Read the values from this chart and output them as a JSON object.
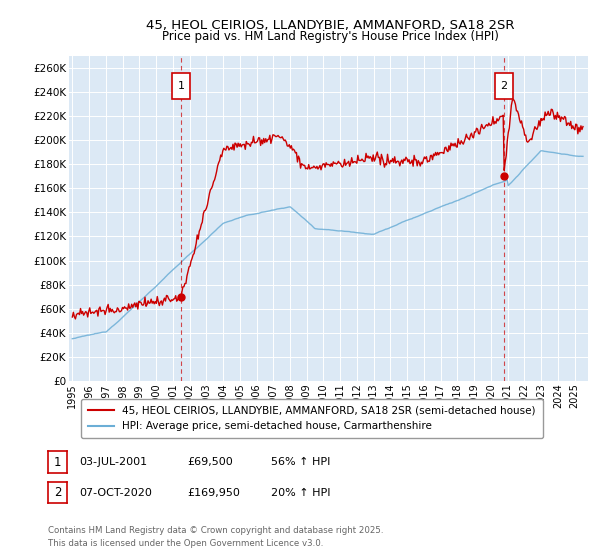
{
  "title": "45, HEOL CEIRIOS, LLANDYBIE, AMMANFORD, SA18 2SR",
  "subtitle": "Price paid vs. HM Land Registry's House Price Index (HPI)",
  "ylim": [
    0,
    270000
  ],
  "yticks": [
    0,
    20000,
    40000,
    60000,
    80000,
    100000,
    120000,
    140000,
    160000,
    180000,
    200000,
    220000,
    240000,
    260000
  ],
  "ytick_labels": [
    "£0",
    "£20K",
    "£40K",
    "£60K",
    "£80K",
    "£100K",
    "£120K",
    "£140K",
    "£160K",
    "£180K",
    "£200K",
    "£220K",
    "£240K",
    "£260K"
  ],
  "bg_color": "#dce9f5",
  "red_color": "#cc0000",
  "blue_color": "#6baed6",
  "marker1_date": 2001.5,
  "marker1_value": 69500,
  "marker2_date": 2020.77,
  "marker2_value": 169950,
  "legend_line1": "45, HEOL CEIRIOS, LLANDYBIE, AMMANFORD, SA18 2SR (semi-detached house)",
  "legend_line2": "HPI: Average price, semi-detached house, Carmarthenshire",
  "note1_label": "1",
  "note1_date": "03-JUL-2001",
  "note1_price": "£69,500",
  "note1_hpi": "56% ↑ HPI",
  "note2_label": "2",
  "note2_date": "07-OCT-2020",
  "note2_price": "£169,950",
  "note2_hpi": "20% ↑ HPI",
  "copyright": "Contains HM Land Registry data © Crown copyright and database right 2025.\nThis data is licensed under the Open Government Licence v3.0.",
  "xlim_start": 1994.8,
  "xlim_end": 2025.8
}
